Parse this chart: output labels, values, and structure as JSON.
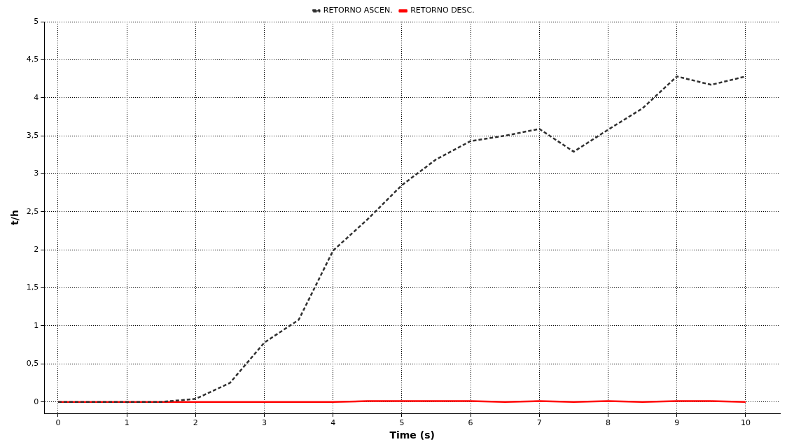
{
  "chart_data": {
    "type": "line",
    "xlabel": "Time (s)",
    "ylabel": "t/h",
    "x": [
      0,
      0.5,
      1,
      1.5,
      2,
      2.5,
      3,
      3.5,
      4,
      4.5,
      5,
      5.5,
      6,
      6.5,
      7,
      7.5,
      8,
      8.5,
      9,
      9.5,
      10
    ],
    "series": [
      {
        "name": "RETORNO ASCEN.",
        "color": "#303030",
        "line_style": "dashed",
        "values": [
          0,
          0,
          0,
          0,
          0.04,
          0.25,
          0.78,
          1.08,
          1.99,
          2.4,
          2.85,
          3.19,
          3.43,
          3.5,
          3.59,
          3.29,
          3.58,
          3.86,
          4.28,
          4.17,
          4.28
        ]
      },
      {
        "name": "RETORNO DESC.",
        "color": "#ff0000",
        "line_style": "solid",
        "values": [
          0,
          0,
          0,
          0,
          0,
          0,
          0,
          0,
          0,
          0.01,
          0.01,
          0.01,
          0.01,
          0,
          0.01,
          0,
          0.01,
          0,
          0.01,
          0.01,
          0
        ]
      }
    ],
    "xlim": [
      -0.2,
      10.5
    ],
    "xticks": [
      0,
      1,
      2,
      3,
      4,
      5,
      6,
      7,
      8,
      9,
      10
    ],
    "ylim": [
      -0.15,
      5
    ],
    "yticks": [
      0,
      {
        "value": 0.5,
        "label": "0,5"
      },
      1,
      {
        "value": 1.5,
        "label": "1,5"
      },
      2,
      {
        "value": 2.5,
        "label": "2,5"
      },
      3,
      {
        "value": 3.5,
        "label": "3,5"
      },
      4,
      {
        "value": 4.5,
        "label": "4,5"
      },
      5
    ],
    "grid": true,
    "legend": "top",
    "marker": "none"
  }
}
